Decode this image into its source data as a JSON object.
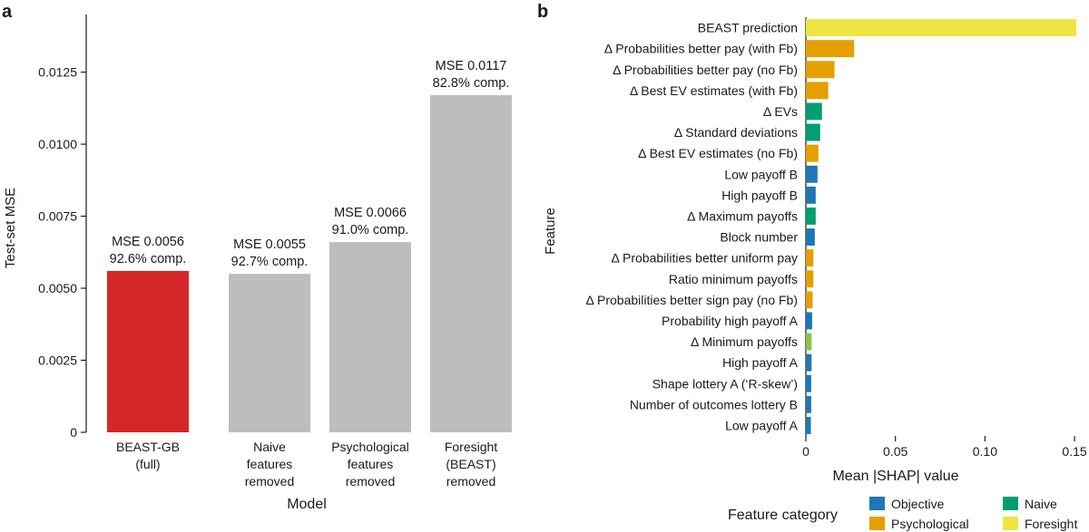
{
  "colors": {
    "highlight": "#d62728",
    "neutral": "#bdbdbd",
    "objective": "#1f77b4",
    "psychological": "#e69f00",
    "naive": "#009e73",
    "foresight": "#f0e442",
    "mixed": "#8bc34a"
  },
  "chart_data": [
    {
      "panel_label": "a",
      "type": "bar",
      "xlabel": "Model",
      "ylabel": "Test-set MSE",
      "ylim": [
        0,
        0.0145
      ],
      "yticks": [
        0,
        0.0025,
        0.005,
        0.0075,
        0.01,
        0.0125
      ],
      "ytick_labels": [
        "0",
        "0.0025",
        "0.0050",
        "0.0075",
        "0.0100",
        "0.0125"
      ],
      "categories": [
        [
          "BEAST-GB",
          "(full)"
        ],
        [
          "Naive",
          "features",
          "removed"
        ],
        [
          "Psychological",
          "features",
          "removed"
        ],
        [
          "Foresight",
          "(BEAST)",
          "removed"
        ]
      ],
      "values": [
        0.0056,
        0.0055,
        0.0066,
        0.0117
      ],
      "bar_colors": [
        "highlight",
        "neutral",
        "neutral",
        "neutral"
      ],
      "annotations": [
        [
          "MSE 0.0056",
          "92.6% comp."
        ],
        [
          "MSE 0.0055",
          "92.7% comp."
        ],
        [
          "MSE 0.0066",
          "91.0% comp."
        ],
        [
          "MSE 0.0117",
          "82.8% comp."
        ]
      ]
    },
    {
      "panel_label": "b",
      "type": "bar",
      "orientation": "horizontal",
      "xlabel": "Mean |SHAP| value",
      "ylabel": "Feature",
      "xlim": [
        0,
        0.152
      ],
      "xticks": [
        0,
        0.05,
        0.1,
        0.15
      ],
      "xtick_labels": [
        "0",
        "0.05",
        "0.10",
        "0.15"
      ],
      "features": [
        {
          "label": "BEAST prediction",
          "value": 0.151,
          "category": "foresight"
        },
        {
          "label": "Δ Probabilities better pay (with Fb)",
          "value": 0.027,
          "category": "psychological"
        },
        {
          "label": "Δ Probabilities better pay (no Fb)",
          "value": 0.016,
          "category": "psychological"
        },
        {
          "label": "Δ Best EV estimates (with Fb)",
          "value": 0.0125,
          "category": "psychological"
        },
        {
          "label": "Δ EVs",
          "value": 0.009,
          "category": "naive"
        },
        {
          "label": "Δ Standard deviations",
          "value": 0.008,
          "category": "naive"
        },
        {
          "label": "Δ Best EV estimates (no Fb)",
          "value": 0.007,
          "category": "psychological"
        },
        {
          "label": "Low payoff B",
          "value": 0.0065,
          "category": "objective"
        },
        {
          "label": "High payoff B",
          "value": 0.0055,
          "category": "objective"
        },
        {
          "label": "Δ Maximum payoffs",
          "value": 0.0055,
          "category": "naive"
        },
        {
          "label": "Block number",
          "value": 0.005,
          "category": "objective"
        },
        {
          "label": "Δ Probabilities better uniform pay",
          "value": 0.0042,
          "category": "psychological"
        },
        {
          "label": "Ratio minimum payoffs",
          "value": 0.0042,
          "category": "psychological"
        },
        {
          "label": "Δ Probabilities better sign pay (no Fb)",
          "value": 0.0038,
          "category": "psychological"
        },
        {
          "label": "Probability high payoff A",
          "value": 0.0035,
          "category": "objective"
        },
        {
          "label": "Δ Minimum payoffs",
          "value": 0.0032,
          "category": "mixed"
        },
        {
          "label": "High payoff A",
          "value": 0.0032,
          "category": "objective"
        },
        {
          "label": "Shape lottery A (‘R-skew’)",
          "value": 0.003,
          "category": "objective"
        },
        {
          "label": "Number of outcomes lottery B",
          "value": 0.003,
          "category": "objective"
        },
        {
          "label": "Low payoff A",
          "value": 0.0028,
          "category": "objective"
        }
      ],
      "legend": {
        "title": "Feature category",
        "placement": "bottom",
        "entries": [
          {
            "label": "Objective",
            "category": "objective"
          },
          {
            "label": "Naive",
            "category": "naive"
          },
          {
            "label": "Psychological",
            "category": "psychological"
          },
          {
            "label": "Foresight",
            "category": "foresight"
          }
        ]
      }
    }
  ]
}
